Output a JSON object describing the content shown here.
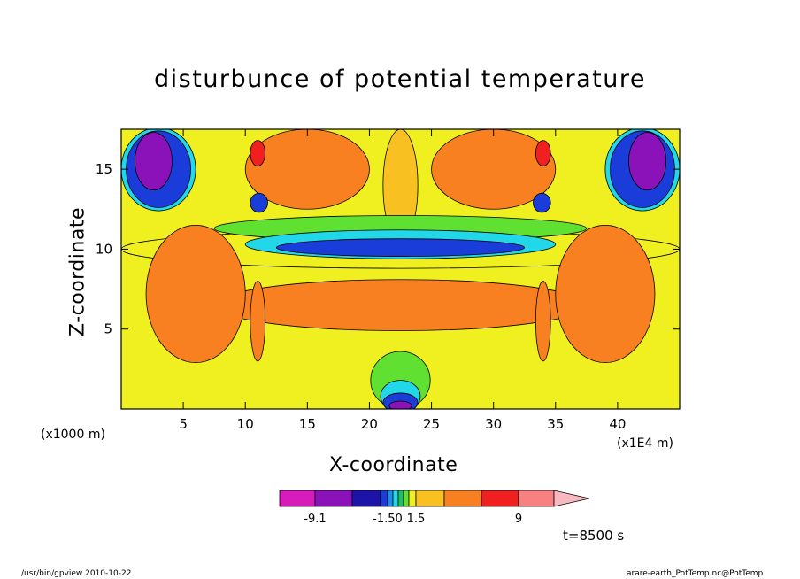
{
  "chart_data": {
    "type": "heatmap",
    "title": "disturbunce of potential temperature",
    "xlabel": "X-coordinate",
    "ylabel": "Z-coordinate",
    "x_unit": "(x1E4 m)",
    "y_unit": "(x1000 m)",
    "xlim": [
      0,
      45
    ],
    "ylim": [
      0,
      17.5
    ],
    "xticks": [
      5,
      10,
      15,
      20,
      25,
      30,
      35,
      40
    ],
    "yticks": [
      5,
      10,
      15
    ],
    "time_label": "t=8500 s",
    "colorbar": {
      "colors": [
        "#d81bbd",
        "#8b12b8",
        "#1c14a8",
        "#1a3cd8",
        "#1c8cf0",
        "#22d8e8",
        "#20c060",
        "#60e030",
        "#f0f020",
        "#f8c020",
        "#f88020",
        "#f02020",
        "#f88080",
        "#f8b8c0"
      ],
      "tick_labels": [
        "-9.1",
        "-1.50",
        "1.5",
        "9"
      ],
      "range": [
        -9.1,
        9
      ]
    },
    "regions": [
      {
        "x": 22.5,
        "z": 10,
        "rx": 22.5,
        "rz": 1.2,
        "level": 8
      },
      {
        "x": 22.5,
        "z": 6.5,
        "rx": 15,
        "rz": 1.6,
        "level": 10
      },
      {
        "x": 6,
        "z": 7.2,
        "rx": 4,
        "rz": 4.3,
        "level": 10
      },
      {
        "x": 39,
        "z": 7.2,
        "rx": 4,
        "rz": 4.3,
        "level": 10
      },
      {
        "x": 11,
        "z": 5.5,
        "rx": 0.6,
        "rz": 2.5,
        "level": 10
      },
      {
        "x": 34,
        "z": 5.5,
        "rx": 0.6,
        "rz": 2.5,
        "level": 10
      },
      {
        "x": 15,
        "z": 15,
        "rx": 5,
        "rz": 2.5,
        "level": 10
      },
      {
        "x": 30,
        "z": 15,
        "rx": 5,
        "rz": 2.5,
        "level": 10
      },
      {
        "x": 22.5,
        "z": 14,
        "rx": 1.4,
        "rz": 3.5,
        "level": 9
      },
      {
        "x": 11,
        "z": 16,
        "rx": 0.6,
        "rz": 0.8,
        "level": 11
      },
      {
        "x": 34,
        "z": 16,
        "rx": 0.6,
        "rz": 0.8,
        "level": 11
      },
      {
        "x": 22.5,
        "z": 11.3,
        "rx": 15,
        "rz": 0.8,
        "level": 7
      },
      {
        "x": 22.5,
        "z": 10.3,
        "rx": 12.5,
        "rz": 0.9,
        "level": 5
      },
      {
        "x": 22.5,
        "z": 10.1,
        "rx": 10,
        "rz": 0.55,
        "level": 3
      },
      {
        "x": 11.1,
        "z": 12.9,
        "rx": 0.7,
        "rz": 0.6,
        "level": 3
      },
      {
        "x": 33.9,
        "z": 12.9,
        "rx": 0.7,
        "rz": 0.6,
        "level": 3
      },
      {
        "x": 3,
        "z": 15,
        "rx": 3,
        "rz": 2.6,
        "level": 5
      },
      {
        "x": 42,
        "z": 15,
        "rx": 3,
        "rz": 2.6,
        "level": 5
      },
      {
        "x": 3,
        "z": 15,
        "rx": 2.6,
        "rz": 2.4,
        "level": 3
      },
      {
        "x": 42,
        "z": 15,
        "rx": 2.6,
        "rz": 2.4,
        "level": 3
      },
      {
        "x": 2.6,
        "z": 15.5,
        "rx": 1.5,
        "rz": 1.8,
        "level": 1
      },
      {
        "x": 42.4,
        "z": 15.5,
        "rx": 1.5,
        "rz": 1.8,
        "level": 1
      },
      {
        "x": 22.5,
        "z": 1.8,
        "rx": 2.4,
        "rz": 1.8,
        "level": 7
      },
      {
        "x": 22.5,
        "z": 0.8,
        "rx": 1.6,
        "rz": 1.0,
        "level": 5
      },
      {
        "x": 22.5,
        "z": 0.4,
        "rx": 1.4,
        "rz": 0.6,
        "level": 3
      },
      {
        "x": 22.5,
        "z": 0.2,
        "rx": 0.9,
        "rz": 0.3,
        "level": 1
      }
    ]
  },
  "footer": {
    "left": "/usr/bin/gpview   2010-10-22",
    "right": "arare-earth_PotTemp.nc@PotTemp"
  }
}
